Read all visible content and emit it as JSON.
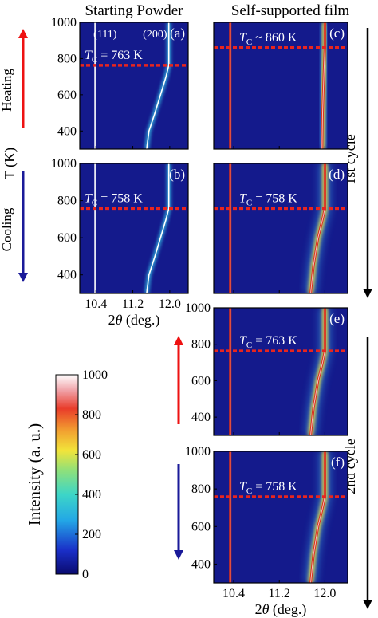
{
  "headers": {
    "left": "Starting Powder",
    "right": "Self-supported film"
  },
  "side_labels": {
    "heating": "Heating",
    "cooling": "Cooling",
    "y_axis": "T (K)",
    "cycle1": "1st cycle",
    "cycle2": "2nd cycle"
  },
  "colors": {
    "arrow_up": "#ee1111",
    "arrow_down": "#1a1a99",
    "tc_line": "#e8251f",
    "panel_bg": "#141a8c",
    "cycle_arrow": "#000000"
  },
  "colorbar": {
    "label": "Intensity (a. u.)",
    "ticks": [
      "0",
      "200",
      "400",
      "600",
      "800",
      "1000"
    ]
  },
  "chart_data": [
    {
      "panel": "(a)",
      "type": "heatmap",
      "column": "Starting Powder",
      "direction": "Heating",
      "xlabel": "",
      "ylabel": "T (K)",
      "xlim": [
        10.05,
        12.4
      ],
      "ylim": [
        300,
        1000
      ],
      "xticks": [
        "10.4",
        "11.2",
        "12.0"
      ],
      "yticks": [
        "1000",
        "800",
        "600",
        "400"
      ],
      "tc_label": "TC = 763 K",
      "tc": 763,
      "peak_labels": [
        "(111)",
        "(200)"
      ],
      "series": [
        {
          "name": "(111)",
          "points": [
            [
              10.38,
              300
            ],
            [
              10.38,
              1000
            ]
          ]
        },
        {
          "name": "(200)",
          "points": [
            [
              11.5,
              300
            ],
            [
              11.55,
              400
            ],
            [
              11.68,
              500
            ],
            [
              11.8,
              600
            ],
            [
              11.92,
              700
            ],
            [
              11.98,
              763
            ],
            [
              11.98,
              1000
            ]
          ]
        }
      ]
    },
    {
      "panel": "(b)",
      "type": "heatmap",
      "column": "Starting Powder",
      "direction": "Cooling",
      "xlabel": "2θ (deg.)",
      "ylabel": "T (K)",
      "xlim": [
        10.05,
        12.4
      ],
      "ylim": [
        300,
        1000
      ],
      "xticks": [
        "10.4",
        "11.2",
        "12.0"
      ],
      "yticks": [
        "1000",
        "800",
        "600",
        "400"
      ],
      "tc_label": "TC = 758 K",
      "tc": 758,
      "series": [
        {
          "name": "(111)",
          "points": [
            [
              10.38,
              300
            ],
            [
              10.38,
              1000
            ]
          ]
        },
        {
          "name": "(200)",
          "points": [
            [
              11.5,
              300
            ],
            [
              11.55,
              400
            ],
            [
              11.68,
              500
            ],
            [
              11.8,
              600
            ],
            [
              11.92,
              700
            ],
            [
              11.98,
              758
            ],
            [
              11.98,
              1000
            ]
          ]
        }
      ]
    },
    {
      "panel": "(c)",
      "type": "heatmap",
      "column": "Self-supported film",
      "direction": "Heating",
      "cycle": "1st",
      "xlabel": "",
      "ylabel": "",
      "xlim": [
        10.05,
        12.4
      ],
      "ylim": [
        300,
        1000
      ],
      "xticks": [
        "10.4",
        "11.2",
        "12.0"
      ],
      "yticks": [],
      "tc_label": "TC ~ 860 K",
      "tc": 860,
      "series": [
        {
          "name": "(111)",
          "points": [
            [
              10.34,
              300
            ],
            [
              10.34,
              1000
            ]
          ]
        },
        {
          "name": "(200)",
          "points": [
            [
              11.95,
              300
            ],
            [
              11.96,
              500
            ],
            [
              11.98,
              700
            ],
            [
              12.0,
              860
            ],
            [
              12.0,
              1000
            ]
          ]
        }
      ]
    },
    {
      "panel": "(d)",
      "type": "heatmap",
      "column": "Self-supported film",
      "direction": "Cooling",
      "cycle": "1st",
      "xlabel": "",
      "ylabel": "",
      "xlim": [
        10.05,
        12.4
      ],
      "ylim": [
        300,
        1000
      ],
      "xticks": [
        "10.4",
        "11.2",
        "12.0"
      ],
      "yticks": [],
      "tc_label": "TC = 758 K",
      "tc": 758,
      "series": [
        {
          "name": "(111)",
          "points": [
            [
              10.34,
              300
            ],
            [
              10.34,
              1000
            ]
          ]
        },
        {
          "name": "(200)",
          "points": [
            [
              11.75,
              300
            ],
            [
              11.8,
              450
            ],
            [
              11.88,
              600
            ],
            [
              11.96,
              700
            ],
            [
              12.0,
              758
            ],
            [
              12.0,
              1000
            ]
          ]
        }
      ]
    },
    {
      "panel": "(e)",
      "type": "heatmap",
      "column": "Self-supported film",
      "direction": "Heating",
      "cycle": "2nd",
      "xlabel": "",
      "ylabel": "T (K)",
      "xlim": [
        10.05,
        12.4
      ],
      "ylim": [
        300,
        1000
      ],
      "xticks": [
        "10.4",
        "11.2",
        "12.0"
      ],
      "yticks": [
        "1000",
        "800",
        "600",
        "400"
      ],
      "tc_label": "TC = 763 K",
      "tc": 763,
      "series": [
        {
          "name": "(111)",
          "points": [
            [
              10.34,
              300
            ],
            [
              10.34,
              1000
            ]
          ]
        },
        {
          "name": "(200)",
          "points": [
            [
              11.75,
              300
            ],
            [
              11.8,
              450
            ],
            [
              11.88,
              600
            ],
            [
              11.96,
              700
            ],
            [
              12.0,
              763
            ],
            [
              12.0,
              1000
            ]
          ]
        }
      ]
    },
    {
      "panel": "(f)",
      "type": "heatmap",
      "column": "Self-supported film",
      "direction": "Cooling",
      "cycle": "2nd",
      "xlabel": "2θ (deg.)",
      "ylabel": "T (K)",
      "xlim": [
        10.05,
        12.4
      ],
      "ylim": [
        300,
        1000
      ],
      "xticks": [
        "10.4",
        "11.2",
        "12.0"
      ],
      "yticks": [
        "1000",
        "800",
        "600",
        "400"
      ],
      "tc_label": "TC = 758 K",
      "tc": 758,
      "series": [
        {
          "name": "(111)",
          "points": [
            [
              10.34,
              300
            ],
            [
              10.34,
              1000
            ]
          ]
        },
        {
          "name": "(200)",
          "points": [
            [
              11.75,
              300
            ],
            [
              11.8,
              450
            ],
            [
              11.88,
              600
            ],
            [
              11.96,
              700
            ],
            [
              12.0,
              758
            ],
            [
              12.0,
              1000
            ]
          ]
        }
      ]
    }
  ]
}
